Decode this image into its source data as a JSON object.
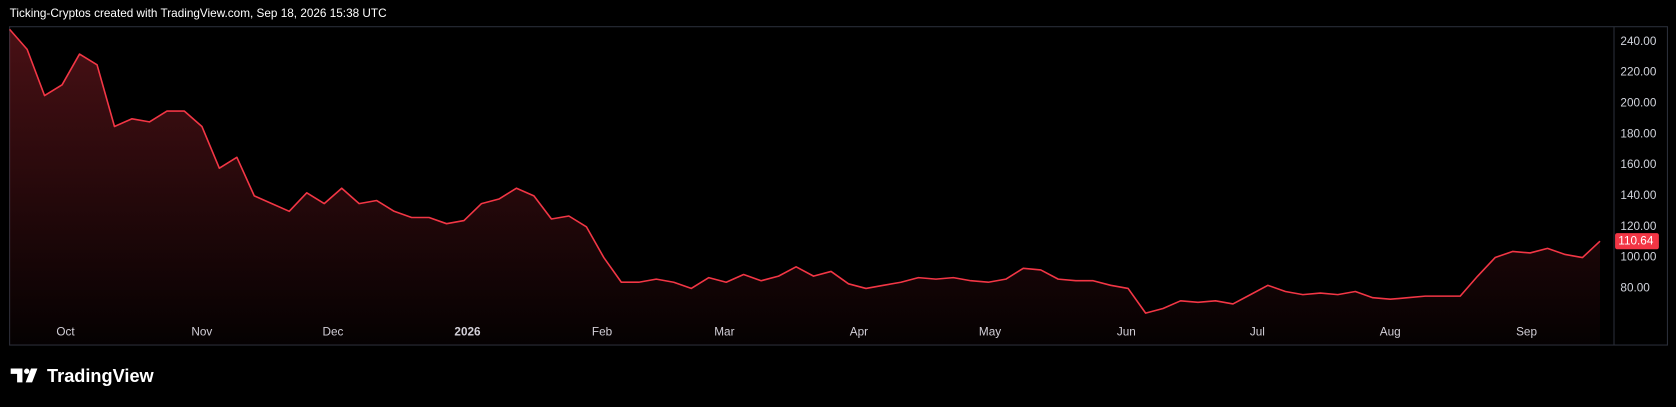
{
  "header": {
    "caption": "Ticking-Cryptos created with TradingView.com, Sep 18, 2026 15:38 UTC"
  },
  "footer": {
    "brand": "TradingView"
  },
  "chart_data": {
    "type": "area",
    "color": "#f23645",
    "values": [
      248,
      235,
      205,
      212,
      232,
      225,
      185,
      190,
      188,
      195,
      195,
      185,
      158,
      165,
      140,
      135,
      130,
      142,
      135,
      145,
      135,
      137,
      130,
      126,
      126,
      122,
      124,
      135,
      138,
      145,
      140,
      125,
      127,
      120,
      100,
      84,
      84,
      86,
      84,
      80,
      87,
      84,
      89,
      85,
      88,
      94,
      88,
      91,
      83,
      80,
      82,
      84,
      87,
      86,
      87,
      85,
      84,
      86,
      93,
      92,
      86,
      85,
      85,
      82,
      80,
      64,
      67,
      72,
      71,
      72,
      70,
      76,
      82,
      78,
      76,
      77,
      76,
      78,
      74,
      73,
      74,
      75,
      75,
      75,
      88,
      100,
      104,
      103,
      106,
      102,
      100,
      110.64
    ],
    "xticks": [
      {
        "value": 3.2,
        "label": "Oct"
      },
      {
        "value": 11,
        "label": "Nov"
      },
      {
        "value": 18.5,
        "label": "Dec"
      },
      {
        "value": 26.2,
        "label": "2026"
      },
      {
        "value": 33.9,
        "label": "Feb"
      },
      {
        "value": 40.9,
        "label": "Mar"
      },
      {
        "value": 48.6,
        "label": "Apr"
      },
      {
        "value": 56.1,
        "label": "May"
      },
      {
        "value": 63.9,
        "label": "Jun"
      },
      {
        "value": 71.4,
        "label": "Jul"
      },
      {
        "value": 79,
        "label": "Aug"
      },
      {
        "value": 86.8,
        "label": "Sep"
      }
    ],
    "ylim": [
      43.3,
      249.7
    ],
    "yticks": [
      {
        "value": 80,
        "label": "80.00"
      },
      {
        "value": 100,
        "label": "100.00"
      },
      {
        "value": 120,
        "label": "120.00"
      },
      {
        "value": 140,
        "label": "140.00"
      },
      {
        "value": 160,
        "label": "160.00"
      },
      {
        "value": 180,
        "label": "180.00"
      },
      {
        "value": 200,
        "label": "200.00"
      },
      {
        "value": 220,
        "label": "220.00"
      },
      {
        "value": 240,
        "label": "240.00"
      }
    ],
    "price_tag": {
      "value": 110.64,
      "label": "110.64"
    }
  }
}
